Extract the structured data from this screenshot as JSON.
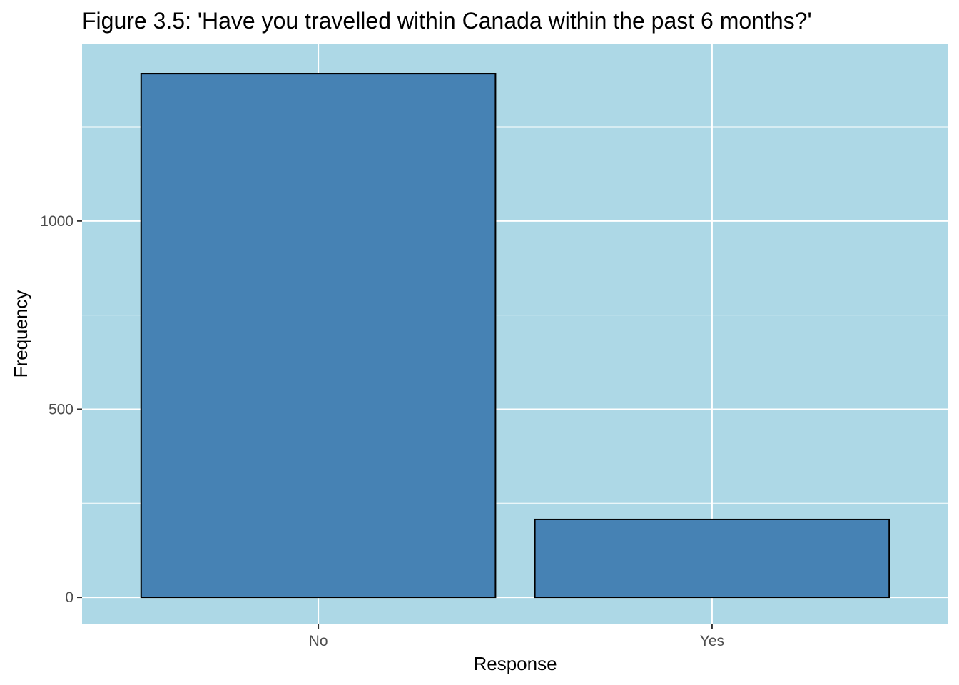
{
  "chart_data": {
    "type": "bar",
    "title": "Figure 3.5: 'Have you travelled within Canada within the past 6 months?'",
    "xlabel": "Response",
    "ylabel": "Frequency",
    "categories": [
      "No",
      "Yes"
    ],
    "values": [
      1392,
      207
    ],
    "ylim": [
      -70,
      1470
    ],
    "yticks": [
      0,
      500,
      1000
    ],
    "yticks_minor": [
      250,
      750,
      1250
    ],
    "y_tick_labels": [
      "0",
      "500",
      "1000"
    ],
    "grid": true,
    "legend": "none",
    "colors": {
      "panel_background": "#add8e6",
      "bar_fill": "#4682b4",
      "bar_outline": "#000000",
      "grid": "#ffffff",
      "tick_label": "#4d4d4d"
    }
  }
}
